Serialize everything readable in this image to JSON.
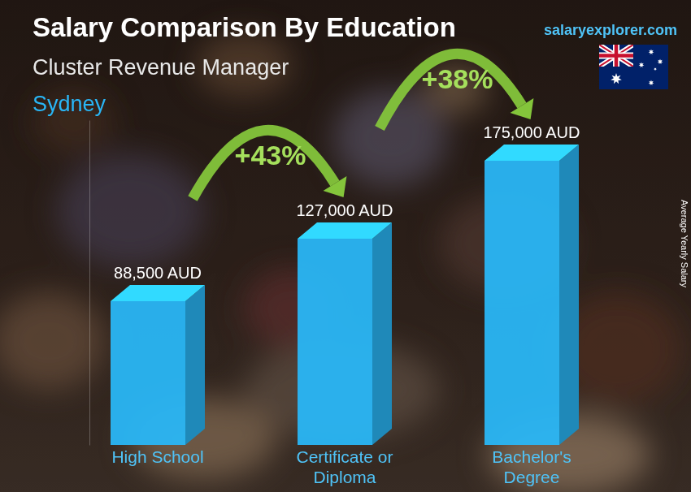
{
  "chart_data": {
    "type": "bar",
    "title": "Salary Comparison By Education",
    "subtitle": "Cluster Revenue Manager",
    "location": "Sydney",
    "source": "salaryexplorer.com",
    "y_label": "Average Yearly Salary",
    "categories": [
      "High School",
      "Certificate or Diploma",
      "Bachelor's Degree"
    ],
    "values": [
      88500,
      127000,
      175000
    ],
    "value_labels": [
      "88,500 AUD",
      "127,000 AUD",
      "175,000 AUD"
    ],
    "data_labels": true,
    "annotations": [
      {
        "text": "+43%"
      },
      {
        "text": "+38%"
      }
    ],
    "color": "#29b6f6",
    "ylim": [
      0,
      200000
    ],
    "tick_labels": false,
    "grid": false
  }
}
